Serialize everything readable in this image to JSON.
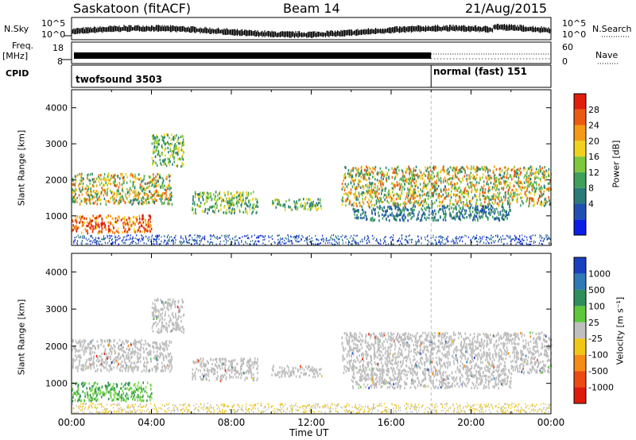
{
  "header": {
    "station": "Saskatoon (fitACF)",
    "beam": "Beam 14",
    "date": "21/Aug/2015"
  },
  "aux_panels": {
    "nsky_label": "N.Sky",
    "nsky_ticks": [
      "10^5",
      "10^0"
    ],
    "nsearch_label": "N.Search",
    "nsearch_ticks": [
      "10^5",
      "10^0"
    ],
    "freq_label": "Freq.",
    "freq_unit": "[MHz]",
    "freq_ticks": [
      "18",
      "8"
    ],
    "nave_label": "Nave",
    "nave_ticks": [
      "60",
      "0"
    ],
    "cpid_label": "CPID",
    "cpid_segments": [
      "twofsound 3503",
      "normal (fast) 151"
    ]
  },
  "chart_data": [
    {
      "type": "heatmap",
      "quantity": "Power",
      "ylabel": "Slant Range [km]",
      "yticks": [
        "4000",
        "3000",
        "2000",
        "1000"
      ],
      "ylim": [
        180,
        4500
      ],
      "colorbar_label": "Power [dB]",
      "colorbar_ticks": [
        "28",
        "24",
        "20",
        "16",
        "12",
        "8",
        "4"
      ],
      "colors": [
        "#0a1ee6",
        "#1f4fb0",
        "#2a7a7a",
        "#3fa05a",
        "#7dc83c",
        "#f0d21e",
        "#f59a14",
        "#ec5a12",
        "#e01e0a"
      ],
      "echo_regions": [
        {
          "t": [
            0.0,
            5.0
          ],
          "range": [
            1350,
            2200
          ],
          "level": "high"
        },
        {
          "t": [
            4.0,
            5.6
          ],
          "range": [
            2400,
            3300
          ],
          "level": "medium"
        },
        {
          "t": [
            0.0,
            4.0
          ],
          "range": [
            550,
            1050
          ],
          "level": "very high"
        },
        {
          "t": [
            6.0,
            9.3
          ],
          "range": [
            1100,
            1700
          ],
          "level": "medium"
        },
        {
          "t": [
            10.0,
            12.5
          ],
          "range": [
            1200,
            1500
          ],
          "level": "medium"
        },
        {
          "t": [
            13.5,
            24.0
          ],
          "range": [
            1300,
            2400
          ],
          "level": "high"
        },
        {
          "t": [
            14.0,
            22.0
          ],
          "range": [
            900,
            1300
          ],
          "level": "low"
        }
      ]
    },
    {
      "type": "heatmap",
      "quantity": "Velocity",
      "ylabel": "Slant Range [km]",
      "xlabel": "Time UT",
      "xticks": [
        "00:00",
        "04:00",
        "08:00",
        "12:00",
        "16:00",
        "20:00",
        "00:00"
      ],
      "yticks": [
        "4000",
        "3000",
        "2000",
        "1000"
      ],
      "ylim": [
        180,
        4500
      ],
      "colorbar_label": "Velocity [m s⁻¹]",
      "colorbar_ticks": [
        "1000",
        "500",
        "100",
        "25",
        "-25",
        "-100",
        "-500",
        "-1000"
      ],
      "colors": [
        "#1a3fbf",
        "#2e7ab5",
        "#2e8f5a",
        "#5cc83a",
        "#bfbfbf",
        "#f0c814",
        "#f58c14",
        "#ec4a10",
        "#e01a0a"
      ],
      "ground_scatter_color": "#bdbdbd"
    }
  ]
}
